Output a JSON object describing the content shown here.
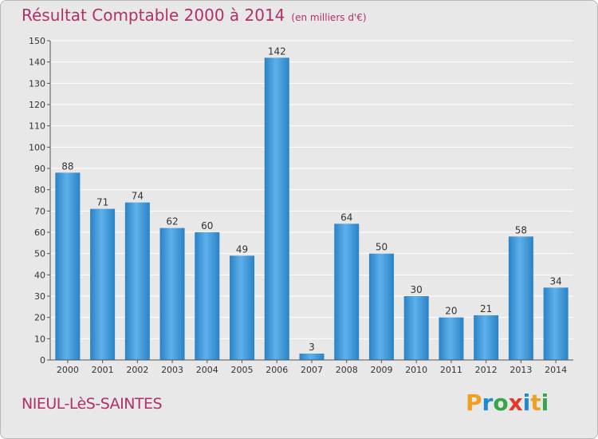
{
  "title": "Résultat Comptable 2000 à 2014",
  "subtitle": "(en milliers d'€)",
  "commune": "NIEUL-LèS-SAINTES",
  "logo": {
    "letters": [
      "P",
      "r",
      "o",
      "x",
      "i",
      "t",
      "i"
    ],
    "colors": [
      "#f0a020",
      "#1e8ad4",
      "#37a64a",
      "#e03a2a",
      "#1e8ad4",
      "#f0a020",
      "#37a64a"
    ]
  },
  "colors": {
    "bar": "#3a93d6",
    "bar_light": "#5eb1ea",
    "bar_dark": "#2378ba",
    "accent": "#b0306a"
  },
  "chart_data": {
    "type": "bar",
    "categories": [
      "2000",
      "2001",
      "2002",
      "2003",
      "2004",
      "2005",
      "2006",
      "2007",
      "2008",
      "2009",
      "2010",
      "2011",
      "2012",
      "2013",
      "2014"
    ],
    "values": [
      88,
      71,
      74,
      62,
      60,
      49,
      142,
      3,
      64,
      50,
      30,
      20,
      21,
      58,
      34
    ],
    "ylim": [
      0,
      150
    ],
    "yticks": [
      0,
      10,
      20,
      30,
      40,
      50,
      60,
      70,
      80,
      90,
      100,
      110,
      120,
      130,
      140,
      150
    ],
    "grid": true,
    "title": "Résultat Comptable 2000 à 2014",
    "xlabel": "",
    "ylabel": ""
  }
}
